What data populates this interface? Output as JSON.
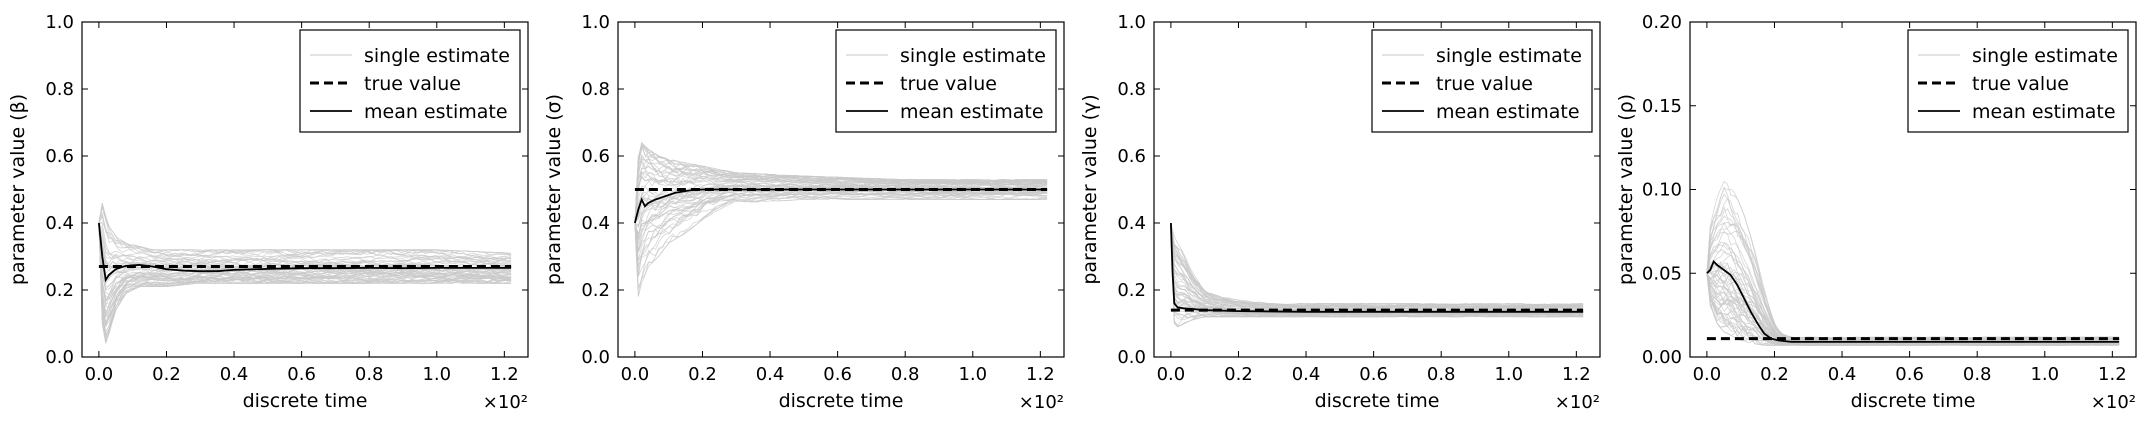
{
  "figure": {
    "legend_labels": {
      "single": "single estimate",
      "true": "true value",
      "mean": "mean estimate"
    }
  },
  "chart_data": [
    {
      "type": "line",
      "ylabel": "parameter value (β)",
      "xlabel": "discrete time",
      "x_multiplier": "×10²",
      "xlim": [
        -0.05,
        1.27
      ],
      "ylim": [
        0.0,
        1.0
      ],
      "xticks": [
        "0.0",
        "0.2",
        "0.4",
        "0.6",
        "0.8",
        "1.0",
        "1.2"
      ],
      "yticks": [
        "0.0",
        "0.2",
        "0.4",
        "0.6",
        "0.8",
        "1.0"
      ],
      "legend": "top-right",
      "true_value": 0.27,
      "series": [
        {
          "name": "true value",
          "x": [
            0.0,
            1.22
          ],
          "y": [
            0.27,
            0.27
          ]
        },
        {
          "name": "mean estimate",
          "x": [
            0.0,
            0.01,
            0.02,
            0.03,
            0.05,
            0.08,
            0.12,
            0.16,
            0.2,
            0.25,
            0.3,
            0.35,
            0.4,
            0.5,
            0.6,
            0.7,
            0.8,
            0.9,
            1.0,
            1.1,
            1.22
          ],
          "y": [
            0.4,
            0.3,
            0.23,
            0.245,
            0.262,
            0.272,
            0.275,
            0.27,
            0.262,
            0.258,
            0.256,
            0.256,
            0.26,
            0.263,
            0.265,
            0.265,
            0.266,
            0.265,
            0.266,
            0.266,
            0.266
          ]
        },
        {
          "name": "single estimate",
          "envelope": true,
          "x": [
            0.0,
            0.01,
            0.02,
            0.03,
            0.05,
            0.08,
            0.12,
            0.16,
            0.2,
            0.3,
            0.5,
            0.8,
            1.0,
            1.22
          ],
          "lower": [
            0.4,
            0.1,
            0.04,
            0.07,
            0.14,
            0.19,
            0.21,
            0.21,
            0.21,
            0.22,
            0.22,
            0.22,
            0.22,
            0.22
          ],
          "upper": [
            0.4,
            0.46,
            0.42,
            0.39,
            0.36,
            0.34,
            0.33,
            0.32,
            0.32,
            0.32,
            0.32,
            0.32,
            0.32,
            0.31
          ]
        }
      ]
    },
    {
      "type": "line",
      "ylabel": "parameter value (σ)",
      "xlabel": "discrete time",
      "x_multiplier": "×10²",
      "xlim": [
        -0.05,
        1.27
      ],
      "ylim": [
        0.0,
        1.0
      ],
      "xticks": [
        "0.0",
        "0.2",
        "0.4",
        "0.6",
        "0.8",
        "1.0",
        "1.2"
      ],
      "yticks": [
        "0.0",
        "0.2",
        "0.4",
        "0.6",
        "0.8",
        "1.0"
      ],
      "legend": "top-right",
      "true_value": 0.5,
      "series": [
        {
          "name": "true value",
          "x": [
            0.0,
            1.22
          ],
          "y": [
            0.5,
            0.5
          ]
        },
        {
          "name": "mean estimate",
          "x": [
            0.0,
            0.01,
            0.02,
            0.03,
            0.04,
            0.06,
            0.09,
            0.12,
            0.16,
            0.2,
            0.3,
            0.4,
            0.6,
            0.8,
            1.0,
            1.22
          ],
          "y": [
            0.4,
            0.44,
            0.47,
            0.45,
            0.46,
            0.47,
            0.48,
            0.49,
            0.497,
            0.5,
            0.5,
            0.5,
            0.5,
            0.5,
            0.5,
            0.5
          ]
        },
        {
          "name": "single estimate",
          "envelope": true,
          "x": [
            0.0,
            0.01,
            0.02,
            0.04,
            0.07,
            0.1,
            0.15,
            0.2,
            0.25,
            0.3,
            0.5,
            0.8,
            1.0,
            1.22
          ],
          "lower": [
            0.4,
            0.18,
            0.22,
            0.27,
            0.3,
            0.34,
            0.37,
            0.41,
            0.44,
            0.46,
            0.47,
            0.47,
            0.47,
            0.47
          ],
          "upper": [
            0.4,
            0.6,
            0.64,
            0.62,
            0.6,
            0.59,
            0.58,
            0.57,
            0.56,
            0.55,
            0.54,
            0.53,
            0.53,
            0.53
          ]
        }
      ]
    },
    {
      "type": "line",
      "ylabel": "parameter value (γ)",
      "xlabel": "discrete time",
      "x_multiplier": "×10²",
      "xlim": [
        -0.05,
        1.27
      ],
      "ylim": [
        0.0,
        1.0
      ],
      "xticks": [
        "0.0",
        "0.2",
        "0.4",
        "0.6",
        "0.8",
        "1.0",
        "1.2"
      ],
      "yticks": [
        "0.0",
        "0.2",
        "0.4",
        "0.6",
        "0.8",
        "1.0"
      ],
      "legend": "top-right",
      "true_value": 0.14,
      "series": [
        {
          "name": "true value",
          "x": [
            0.0,
            1.22
          ],
          "y": [
            0.14,
            0.14
          ]
        },
        {
          "name": "mean estimate",
          "x": [
            0.0,
            0.005,
            0.01,
            0.02,
            0.04,
            0.07,
            0.1,
            0.2,
            0.4,
            0.6,
            0.8,
            1.0,
            1.22
          ],
          "y": [
            0.4,
            0.25,
            0.16,
            0.148,
            0.145,
            0.143,
            0.14,
            0.137,
            0.135,
            0.135,
            0.135,
            0.135,
            0.135
          ]
        },
        {
          "name": "single estimate",
          "envelope": true,
          "x": [
            0.0,
            0.01,
            0.02,
            0.04,
            0.06,
            0.1,
            0.15,
            0.2,
            0.3,
            0.5,
            0.8,
            1.0,
            1.22
          ],
          "lower": [
            0.4,
            0.1,
            0.09,
            0.1,
            0.11,
            0.12,
            0.12,
            0.12,
            0.12,
            0.12,
            0.12,
            0.12,
            0.12
          ],
          "upper": [
            0.4,
            0.36,
            0.34,
            0.31,
            0.26,
            0.2,
            0.18,
            0.17,
            0.16,
            0.16,
            0.16,
            0.16,
            0.16
          ]
        }
      ]
    },
    {
      "type": "line",
      "ylabel": "parameter value (ρ)",
      "xlabel": "discrete time",
      "x_multiplier": "×10²",
      "xlim": [
        -0.05,
        1.27
      ],
      "ylim": [
        0.0,
        0.2
      ],
      "xticks": [
        "0.0",
        "0.2",
        "0.4",
        "0.6",
        "0.8",
        "1.0",
        "1.2"
      ],
      "yticks": [
        "0.00",
        "0.05",
        "0.10",
        "0.15",
        "0.20"
      ],
      "legend": "top-right",
      "true_value": 0.011,
      "series": [
        {
          "name": "true value",
          "x": [
            0.0,
            1.22
          ],
          "y": [
            0.011,
            0.011
          ]
        },
        {
          "name": "mean estimate",
          "x": [
            0.0,
            0.01,
            0.02,
            0.03,
            0.05,
            0.07,
            0.09,
            0.11,
            0.13,
            0.15,
            0.17,
            0.19,
            0.21,
            0.25,
            0.4,
            0.6,
            0.8,
            1.0,
            1.22
          ],
          "y": [
            0.05,
            0.052,
            0.057,
            0.055,
            0.052,
            0.049,
            0.043,
            0.035,
            0.027,
            0.02,
            0.014,
            0.011,
            0.01,
            0.009,
            0.009,
            0.009,
            0.009,
            0.009,
            0.009
          ]
        },
        {
          "name": "single estimate",
          "envelope": true,
          "x": [
            0.0,
            0.01,
            0.03,
            0.05,
            0.08,
            0.11,
            0.14,
            0.17,
            0.2,
            0.22,
            0.25,
            0.5,
            1.0,
            1.22
          ],
          "lower": [
            0.05,
            0.03,
            0.02,
            0.015,
            0.012,
            0.009,
            0.008,
            0.007,
            0.007,
            0.007,
            0.007,
            0.007,
            0.007,
            0.007
          ],
          "upper": [
            0.05,
            0.08,
            0.095,
            0.105,
            0.1,
            0.085,
            0.065,
            0.04,
            0.02,
            0.014,
            0.012,
            0.012,
            0.012,
            0.012
          ]
        }
      ]
    }
  ]
}
